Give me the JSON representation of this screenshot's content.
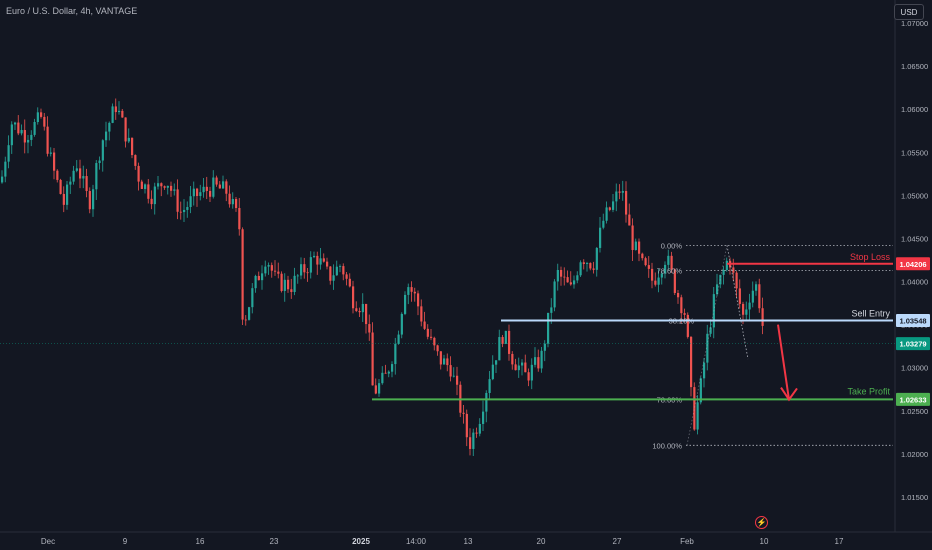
{
  "symbol": {
    "title": "Euro / U.S. Dollar, 4h, VANTAGE"
  },
  "currency_button": {
    "label": "USD"
  },
  "colors": {
    "background": "#131722",
    "up": "#26a69a",
    "down": "#ef5350",
    "stop_loss": "#f23645",
    "sell_entry": "#bbd9fb",
    "take_profit": "#4caf50",
    "current_price": "#089981"
  },
  "price_axis": {
    "ticks": [
      "1.07000",
      "1.06500",
      "1.06000",
      "1.05500",
      "1.05000",
      "1.04500",
      "1.04000",
      "1.03500",
      "1.03000",
      "1.02500",
      "1.02000",
      "1.01500"
    ]
  },
  "time_axis": {
    "labels": [
      {
        "text": "Dec",
        "bold": false
      },
      {
        "text": "9",
        "bold": false
      },
      {
        "text": "16",
        "bold": false
      },
      {
        "text": "23",
        "bold": false
      },
      {
        "text": "2025",
        "bold": true
      },
      {
        "text": "14:00",
        "bold": false
      },
      {
        "text": "13",
        "bold": false
      },
      {
        "text": "20",
        "bold": false
      },
      {
        "text": "27",
        "bold": false
      },
      {
        "text": "Feb",
        "bold": false
      },
      {
        "text": "10",
        "bold": false
      },
      {
        "text": "17",
        "bold": false
      }
    ]
  },
  "levels": {
    "stop_loss": {
      "label": "Stop Loss",
      "price": "1.04206"
    },
    "sell_entry": {
      "label": "Sell Entry",
      "price": "1.03548"
    },
    "take_profit": {
      "label": "Take Profit",
      "price": "1.02633"
    },
    "current": {
      "price": "1.03279"
    }
  },
  "fib_levels": [
    {
      "label": "0.00%",
      "price": 1.0442
    },
    {
      "label": "78.60%",
      "price": 1.0413
    },
    {
      "label": "38.20%",
      "price": 1.0355
    },
    {
      "label": "78.60%",
      "price": 1.0263
    },
    {
      "label": "100.00%",
      "price": 1.021
    }
  ],
  "chart_data": {
    "type": "candlestick",
    "title": "Euro / U.S. Dollar, 4h, VANTAGE",
    "ylim": [
      1.0125,
      1.0715
    ],
    "x_labels": [
      "Dec",
      "9",
      "16",
      "23",
      "2025",
      "14:00",
      "13",
      "20",
      "27",
      "Feb",
      "10",
      "17"
    ],
    "price_path": [
      [
        0,
        1.0515
      ],
      [
        10,
        1.0585
      ],
      [
        25,
        1.057
      ],
      [
        40,
        1.059
      ],
      [
        52,
        1.053
      ],
      [
        63,
        1.049
      ],
      [
        75,
        1.054
      ],
      [
        88,
        1.049
      ],
      [
        100,
        1.056
      ],
      [
        115,
        1.0605
      ],
      [
        125,
        1.057
      ],
      [
        138,
        1.052
      ],
      [
        150,
        1.05
      ],
      [
        165,
        1.052
      ],
      [
        180,
        1.048
      ],
      [
        195,
        1.05
      ],
      [
        212,
        1.051
      ],
      [
        225,
        1.0505
      ],
      [
        238,
        1.047
      ],
      [
        242,
        1.035
      ],
      [
        252,
        1.039
      ],
      [
        265,
        1.043
      ],
      [
        275,
        1.04
      ],
      [
        290,
        1.0395
      ],
      [
        300,
        1.041
      ],
      [
        315,
        1.043
      ],
      [
        328,
        1.0405
      ],
      [
        340,
        1.042
      ],
      [
        352,
        1.038
      ],
      [
        362,
        1.037
      ],
      [
        367,
        1.035
      ],
      [
        372,
        1.027
      ],
      [
        385,
        1.029
      ],
      [
        395,
        1.033
      ],
      [
        405,
        1.04
      ],
      [
        415,
        1.038
      ],
      [
        425,
        1.034
      ],
      [
        438,
        1.031
      ],
      [
        450,
        1.03
      ],
      [
        458,
        1.026
      ],
      [
        468,
        1.021
      ],
      [
        478,
        1.024
      ],
      [
        490,
        1.03
      ],
      [
        502,
        1.034
      ],
      [
        512,
        1.031
      ],
      [
        525,
        1.029
      ],
      [
        540,
        1.031
      ],
      [
        548,
        1.036
      ],
      [
        556,
        1.041
      ],
      [
        570,
        1.039
      ],
      [
        580,
        1.043
      ],
      [
        592,
        1.042
      ],
      [
        602,
        1.047
      ],
      [
        612,
        1.049
      ],
      [
        620,
        1.051
      ],
      [
        630,
        1.045
      ],
      [
        640,
        1.042
      ],
      [
        652,
        1.04
      ],
      [
        665,
        1.043
      ],
      [
        675,
        1.039
      ],
      [
        685,
        1.036
      ],
      [
        692,
        1.023
      ],
      [
        700,
        1.028
      ],
      [
        707,
        1.034
      ],
      [
        715,
        1.039
      ],
      [
        722,
        1.041
      ],
      [
        728,
        1.043
      ],
      [
        735,
        1.039
      ],
      [
        742,
        1.036
      ],
      [
        750,
        1.039
      ],
      [
        756,
        1.0395
      ],
      [
        762,
        1.0345
      ]
    ]
  }
}
